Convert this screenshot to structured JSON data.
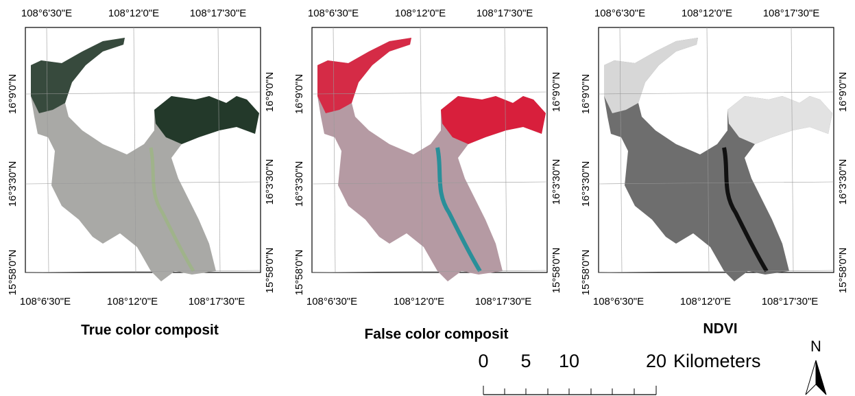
{
  "panels": [
    {
      "title": "True color composit",
      "top_labels": [
        "108°6'30\"E",
        "108°12'0\"E",
        "108°17'30\"E"
      ],
      "bottom_labels": [
        "108°6'30\"E",
        "108°12'0\"E",
        "108°17'30\"E"
      ],
      "left_labels": [
        "16°9'0\"N",
        "16°3'30\"N",
        "15°58'0\"N"
      ],
      "right_labels": [
        "16°9'0\"N",
        "16°3'30\"N",
        "15°58'0\"N"
      ]
    },
    {
      "title": "False color composit",
      "top_labels": [
        "108°6'30\"E",
        "108°12'0\"E",
        "108°17'30\"E"
      ],
      "bottom_labels": [
        "108°6'30\"E",
        "108°12'0\"E",
        "108°17'30\"E"
      ],
      "left_labels": [
        "16°9'0\"N",
        "16°3'30\"N",
        "15°58'0\"N"
      ],
      "right_labels": [
        "16°9'0\"N",
        "16°3'30\"N",
        "15°58'0\"N"
      ]
    },
    {
      "title": "NDVI",
      "top_labels": [
        "108°6'30\"E",
        "108°12'0\"E",
        "108°17'30\"E"
      ],
      "bottom_labels": [
        "108°6'30\"E",
        "108°12'0\"E",
        "108°17'30\"E"
      ],
      "left_labels": [
        "16°9'0\"N",
        "16°3'30\"N",
        "15°58'0\"N"
      ],
      "right_labels": [
        "16°9'0\"N",
        "16°3'30\"N",
        "15°58'0\"N"
      ]
    }
  ],
  "scale_bar": {
    "labels": [
      "0",
      "5",
      "10",
      "20"
    ],
    "unit": "Kilometers"
  },
  "north_arrow": "N"
}
